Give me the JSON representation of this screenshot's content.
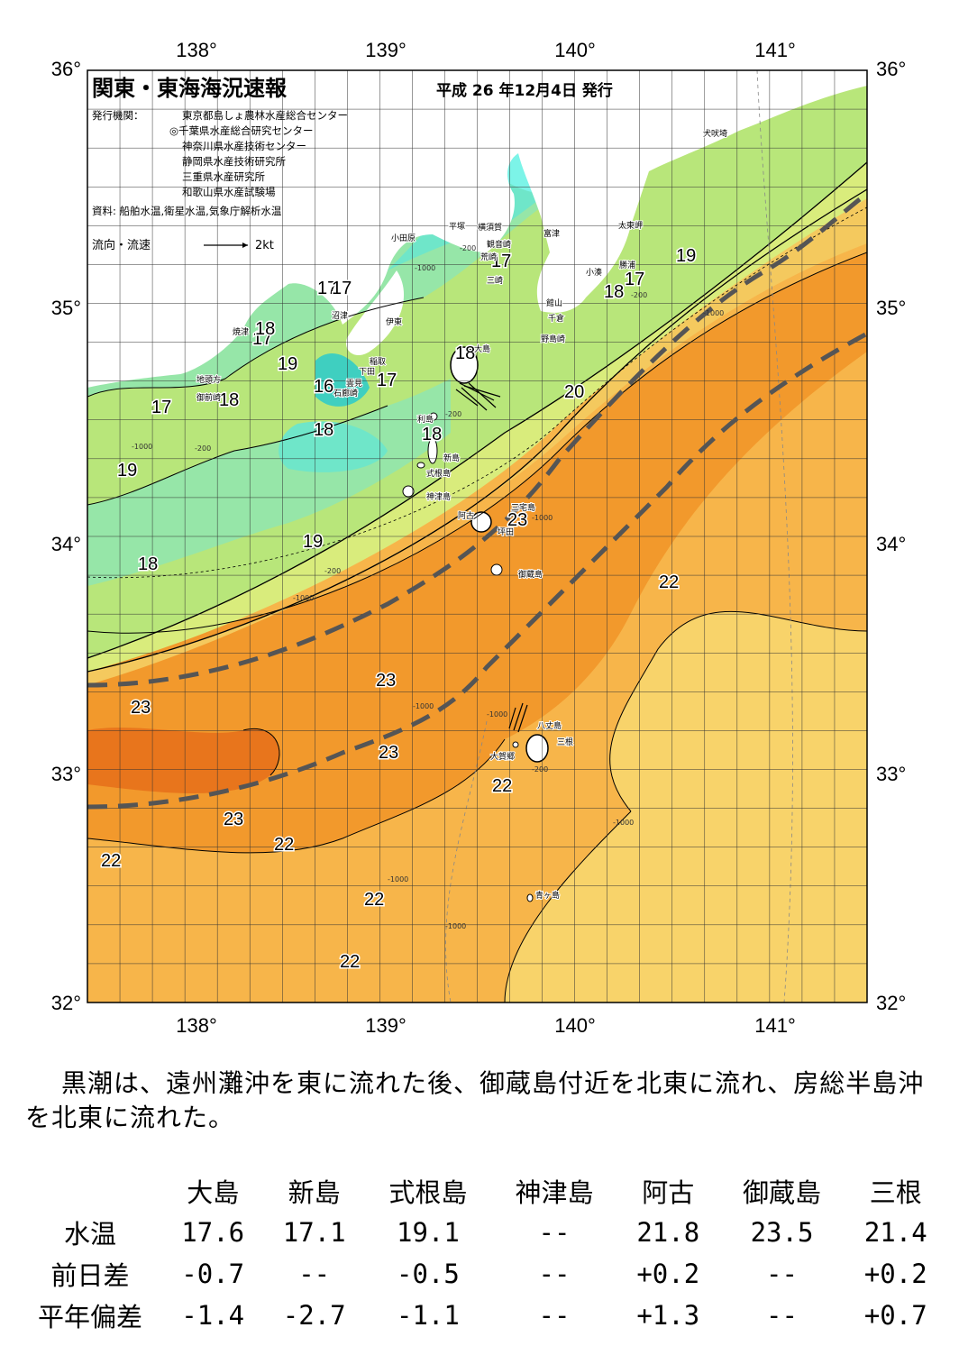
{
  "header": {
    "title": "関東・東海海況速報",
    "date": "平成 26 年12月4日 発行",
    "issuer_label": "発行機関：",
    "issuers": [
      "東京都島しょ農林水産総合センター",
      "◎千葉県水産総合研究センター",
      "神奈川県水産技術センター",
      "静岡県水産技術研究所",
      "三重県水産研究所",
      "和歌山県水産試験場"
    ],
    "source": "資料: 船舶水温,衛星水温,気象庁解析水温",
    "flow_legend_label": "流向・流速",
    "flow_legend_unit": "2kt"
  },
  "axes": {
    "lon_labels": [
      "138°",
      "139°",
      "140°",
      "141°"
    ],
    "lat_labels": [
      "36°",
      "35°",
      "34°",
      "33°",
      "32°"
    ]
  },
  "isotherm_labels": [
    "17",
    "17",
    "17",
    "17",
    "17",
    "17",
    "17",
    "18",
    "18",
    "18",
    "18",
    "18",
    "18",
    "18",
    "19",
    "19",
    "19",
    "19",
    "20",
    "23",
    "23",
    "23",
    "23",
    "23",
    "22",
    "22",
    "22",
    "22",
    "22",
    "16"
  ],
  "place_names": [
    "小田原",
    "平塚",
    "横須賀",
    "観音崎",
    "富津",
    "荒崎",
    "三崎",
    "太東岬",
    "小湊",
    "勝浦",
    "館山",
    "千倉",
    "野島崎",
    "犬吠埼",
    "沼津",
    "伊東",
    "焼津",
    "稲取",
    "下田",
    "雲見",
    "石廊崎",
    "地頭方",
    "御前崎",
    "大島",
    "利島",
    "新島",
    "式根島",
    "神津島",
    "三宅島",
    "阿古",
    "坪田",
    "御蔵島",
    "八丈島",
    "三根",
    "大賀郷",
    "青ヶ島"
  ],
  "depth_labels": [
    "-200",
    "-1000"
  ],
  "colors": {
    "land": "#ffffff",
    "t16": "#3fcfc0",
    "t17": "#6fe6c9",
    "t18": "#96e6a8",
    "t19": "#b8e67a",
    "t20": "#d9ec7c",
    "t21": "#f4c95e",
    "t22": "#f7b54a",
    "t22b": "#f8d36a",
    "t23": "#f2992c",
    "t24": "#e8751c",
    "kuroshio": "#555555"
  },
  "summary": "黒潮は、遠州灘沖を東に流れた後、御蔵島付近を北東に流れ、房総半島沖を北東に流れた。",
  "table": {
    "columns": [
      "大島",
      "新島",
      "式根島",
      "神津島",
      "阿古",
      "御蔵島",
      "三根"
    ],
    "rows": [
      {
        "label": "水温",
        "values": [
          "17.6",
          "17.1",
          "19.1",
          "--",
          "21.8",
          "23.5",
          "21.4"
        ]
      },
      {
        "label": "前日差",
        "values": [
          "-0.7",
          "--",
          "-0.5",
          "--",
          "+0.2",
          "--",
          "+0.2"
        ]
      },
      {
        "label": "平年偏差",
        "values": [
          "-1.4",
          "-2.7",
          "-1.1",
          "--",
          "+1.3",
          "--",
          "+0.7"
        ]
      }
    ]
  }
}
